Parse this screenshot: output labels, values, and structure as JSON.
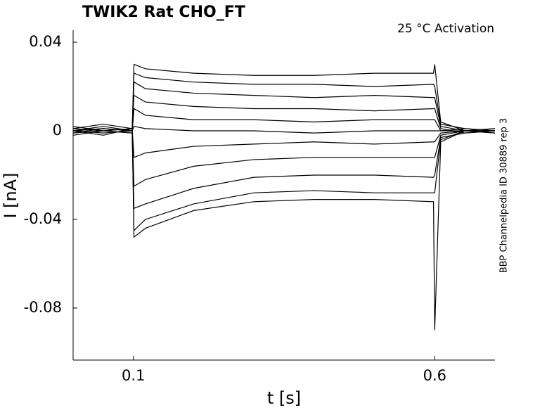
{
  "chart_data": {
    "type": "line",
    "title": "TWIK2  Rat  CHO_FT",
    "annotation": "25 °C  Activation",
    "side_label": "BBP Channelpedia ID 30889 rep 3",
    "xlabel": "t [s]",
    "ylabel": "I [nA]",
    "x": [
      0,
      0.05,
      0.098,
      0.101,
      0.12,
      0.2,
      0.3,
      0.4,
      0.5,
      0.598,
      0.6,
      0.61,
      0.65,
      0.7
    ],
    "series": [
      {
        "color": "#000000",
        "values": [
          0,
          0.002,
          0,
          0.03,
          0.028,
          0.026,
          0.025,
          0.025,
          0.026,
          0.026,
          0.03,
          0.004,
          0,
          0
        ]
      },
      {
        "color": "#000000",
        "values": [
          0.001,
          0.003,
          0.001,
          0.026,
          0.024,
          0.022,
          0.021,
          0.021,
          0.02,
          0.021,
          0.02,
          0.003,
          0.001,
          0
        ]
      },
      {
        "color": "#000000",
        "values": [
          -0.001,
          0.001,
          0,
          0.022,
          0.019,
          0.017,
          0.016,
          0.015,
          0.016,
          0.015,
          0.015,
          0.002,
          0,
          0.001
        ]
      },
      {
        "color": "#000000",
        "values": [
          0,
          -0.002,
          0.001,
          0.016,
          0.013,
          0.011,
          0.01,
          0.01,
          0.009,
          0.01,
          0.01,
          0.001,
          -0.001,
          0
        ]
      },
      {
        "color": "#000000",
        "values": [
          0.002,
          0,
          -0.001,
          0.01,
          0.007,
          0.005,
          0.005,
          0.004,
          0.005,
          0.005,
          0.005,
          0,
          0,
          -0.001
        ]
      },
      {
        "color": "#000000",
        "values": [
          0,
          0.001,
          0,
          0.002,
          0.001,
          0,
          0,
          -0.001,
          0,
          0,
          0,
          0,
          0.001,
          0
        ]
      },
      {
        "color": "#000000",
        "values": [
          -0.001,
          0,
          0.001,
          -0.012,
          -0.01,
          -0.007,
          -0.006,
          -0.005,
          -0.006,
          -0.005,
          -0.005,
          -0.001,
          0,
          0
        ]
      },
      {
        "color": "#000000",
        "values": [
          0,
          -0.001,
          0,
          -0.025,
          -0.022,
          -0.016,
          -0.013,
          -0.012,
          -0.012,
          -0.012,
          -0.012,
          -0.002,
          0,
          0.001
        ]
      },
      {
        "color": "#000000",
        "values": [
          0.001,
          0,
          -0.001,
          -0.035,
          -0.033,
          -0.026,
          -0.021,
          -0.02,
          -0.02,
          -0.021,
          -0.02,
          -0.003,
          -0.001,
          0
        ]
      },
      {
        "color": "#000000",
        "values": [
          0,
          0.001,
          0,
          -0.045,
          -0.04,
          -0.033,
          -0.028,
          -0.027,
          -0.028,
          -0.028,
          -0.028,
          -0.004,
          0,
          0
        ]
      },
      {
        "color": "#000000",
        "values": [
          -0.002,
          0,
          0.001,
          -0.048,
          -0.044,
          -0.036,
          -0.032,
          -0.031,
          -0.031,
          -0.032,
          -0.09,
          -0.005,
          0,
          -0.001
        ]
      }
    ],
    "xlim": [
      0,
      0.7
    ],
    "ylim": [
      -0.1035,
      0.0454
    ],
    "xticks": [
      0.1,
      0.6
    ],
    "yticks": [
      0.04,
      0,
      -0.04,
      -0.08
    ],
    "grid": false
  }
}
